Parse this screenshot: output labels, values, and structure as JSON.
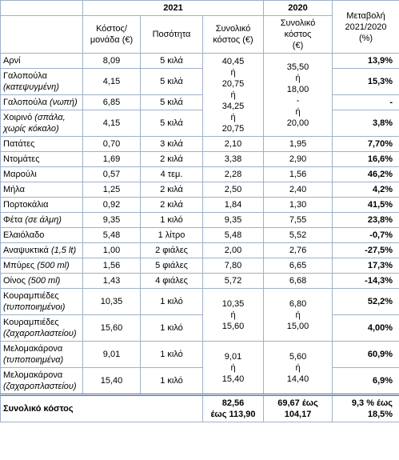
{
  "header": {
    "year_2021": "2021",
    "year_2020": "2020",
    "change": [
      "Μεταβολή",
      "2021/2020",
      "(%)"
    ],
    "unit_cost": [
      "Κόστος/",
      "μονάδα (€)"
    ],
    "quantity": "Ποσότητα",
    "total_2021": [
      "Συνολικό",
      "κόστος (€)"
    ],
    "total_2020": [
      "Συνολικό κόστος",
      "(€)"
    ]
  },
  "rows": [
    {
      "item": "Αρνί",
      "unit_cost": "8,09",
      "quantity": "5 κιλά",
      "total_2021": [
        "40,45",
        "ή",
        "20,75",
        "ή",
        "34,25",
        "ή",
        "20,75"
      ],
      "total_2020": [
        "35,50",
        "ή",
        "18,00",
        "-",
        "ή",
        "20,00"
      ],
      "change": "13,9%"
    },
    {
      "item": "Γαλοπούλα",
      "note": "(κατεψυγμένη)",
      "unit_cost": "4,15",
      "quantity": "5 κιλά",
      "change": "15,3%"
    },
    {
      "item": "Γαλοπούλα",
      "note": "(νωπή)",
      "unit_cost": "6,85",
      "quantity": "5 κιλά",
      "change": "-"
    },
    {
      "item": "Χοιρινό",
      "note": "(σπάλα, χωρίς κόκαλο)",
      "unit_cost": "4,15",
      "quantity": "5 κιλά",
      "change": "3,8%"
    },
    {
      "item": "Πατάτες",
      "unit_cost": "0,70",
      "quantity": "3 κιλά",
      "total_2021": [
        "2,10"
      ],
      "total_2020": [
        "1,95"
      ],
      "change": "7,70%"
    },
    {
      "item": "Ντομάτες",
      "unit_cost": "1,69",
      "quantity": "2 κιλά",
      "total_2021": [
        "3,38"
      ],
      "total_2020": [
        "2,90"
      ],
      "change": "16,6%"
    },
    {
      "item": "Μαρούλι",
      "unit_cost": "0,57",
      "quantity": "4 τεμ.",
      "total_2021": [
        "2,28"
      ],
      "total_2020": [
        "1,56"
      ],
      "change": "46,2%"
    },
    {
      "item": "Μήλα",
      "unit_cost": "1,25",
      "quantity": "2 κιλά",
      "total_2021": [
        "2,50"
      ],
      "total_2020": [
        "2,40"
      ],
      "change": "4,2%"
    },
    {
      "item": "Πορτοκάλια",
      "unit_cost": "0,92",
      "quantity": "2 κιλά",
      "total_2021": [
        "1,84"
      ],
      "total_2020": [
        "1,30"
      ],
      "change": "41,5%"
    },
    {
      "item": "Φέτα",
      "note": "(σε άλμη)",
      "unit_cost": "9,35",
      "quantity": "1 κιλό",
      "total_2021": [
        "9,35"
      ],
      "total_2020": [
        "7,55"
      ],
      "change": "23,8%"
    },
    {
      "item": "Ελαιόλαδο",
      "unit_cost": "5,48",
      "quantity": "1 λίτρο",
      "total_2021": [
        "5,48"
      ],
      "total_2020": [
        "5,52"
      ],
      "change": "-0,7%"
    },
    {
      "item": "Αναψυκτικά",
      "note": "(1,5 lt)",
      "unit_cost": "1,00",
      "quantity": "2 φιάλες",
      "total_2021": [
        "2,00"
      ],
      "total_2020": [
        "2,76"
      ],
      "change": "-27,5%"
    },
    {
      "item": "Μπύρες",
      "note": "(500 ml)",
      "unit_cost": "1,56",
      "quantity": "5 φιάλες",
      "total_2021": [
        "7,80"
      ],
      "total_2020": [
        "6,65"
      ],
      "change": "17,3%"
    },
    {
      "item": "Οίνος",
      "note": "(500 ml)",
      "unit_cost": "1,43",
      "quantity": "4 φιάλες",
      "total_2021": [
        "5,72"
      ],
      "total_2020": [
        "6,68"
      ],
      "change": "-14,3%"
    },
    {
      "item": "Κουραμπιέδες",
      "note": "(τυποποιημένοι)",
      "unit_cost": "10,35",
      "quantity": "1 κιλό",
      "total_2021": [
        "10,35",
        "ή",
        "15,60"
      ],
      "total_2020": [
        "6,80",
        "ή",
        "15,00"
      ],
      "change": "52,2%"
    },
    {
      "item": "Κουραμπιέδες",
      "note": "(ζαχαροπλαστείου)",
      "unit_cost": "15,60",
      "quantity": "1 κιλό",
      "change": "4,00%"
    },
    {
      "item": "Μελομακάρονα",
      "note": "(τυποποιημένα)",
      "unit_cost": "9,01",
      "quantity": "1 κιλό",
      "total_2021": [
        "9,01",
        "ή",
        "15,40"
      ],
      "total_2020": [
        "5,60",
        "ή",
        "14,40"
      ],
      "change": "60,9%"
    },
    {
      "item": "Μελομακάρονα",
      "note": "(ζαχαροπλαστείου)",
      "unit_cost": "15,40",
      "quantity": "1 κιλό",
      "change": "6,9%"
    }
  ],
  "total": {
    "label": "Συνολικό κόστος",
    "total_2021": [
      "82,56",
      "έως 113,90"
    ],
    "total_2020": [
      "69,67 έως",
      "104,17"
    ],
    "change": [
      "9,3 % έως",
      "18,5%"
    ]
  }
}
